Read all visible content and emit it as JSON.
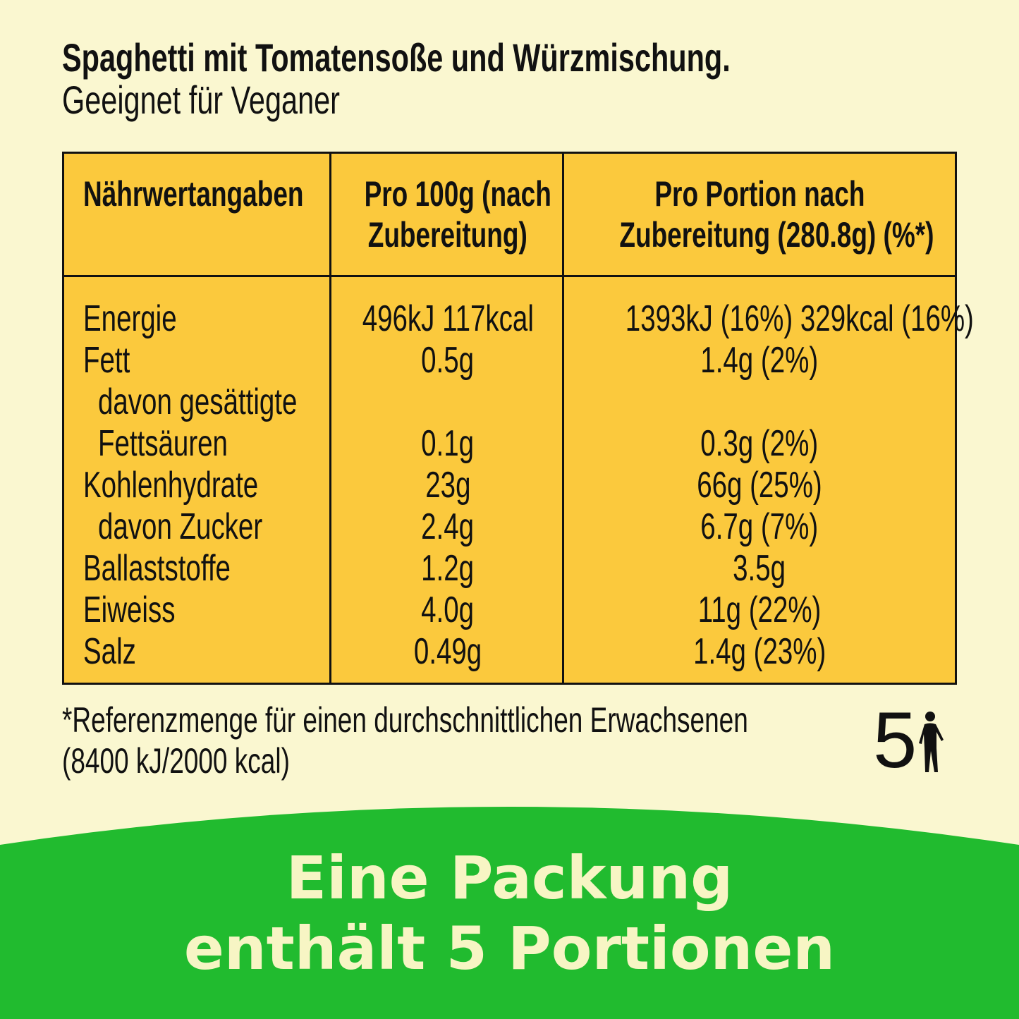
{
  "title": "Spaghetti mit Tomatensoße und Würzmischung.",
  "subtitle": "Geeignet für Veganer",
  "table": {
    "headers": [
      [
        "Nährwertangaben"
      ],
      [
        "Pro 100g (nach",
        "Zubereitung)"
      ],
      [
        "Pro Portion nach",
        "Zubereitung (280.8g) (%*)"
      ]
    ],
    "rows": [
      {
        "label": "Energie",
        "per100": "496kJ 117kcal",
        "portion": "1393kJ (16%) 329kcal (16%)",
        "indent": false
      },
      {
        "label": "Fett",
        "per100": "0.5g",
        "portion": "1.4g (2%)",
        "indent": false
      },
      {
        "label": "davon gesättigte",
        "per100": "",
        "portion": "",
        "indent": true
      },
      {
        "label": "Fettsäuren",
        "per100": "0.1g",
        "portion": "0.3g (2%)",
        "indent": true
      },
      {
        "label": "Kohlenhydrate",
        "per100": "23g",
        "portion": "66g (25%)",
        "indent": false
      },
      {
        "label": "davon Zucker",
        "per100": "2.4g",
        "portion": "6.7g (7%)",
        "indent": true
      },
      {
        "label": "Ballaststoffe",
        "per100": "1.2g",
        "portion": "3.5g",
        "indent": false
      },
      {
        "label": "Eiweiss",
        "per100": "4.0g",
        "portion": "11g (22%)",
        "indent": false
      },
      {
        "label": "Salz",
        "per100": "0.49g",
        "portion": "1.4g (23%)",
        "indent": false
      }
    ]
  },
  "footnote": [
    "*Referenzmenge für einen durchschnittlichen Erwachsenen",
    "(8400 kJ/2000 kcal)"
  ],
  "portions_icon": {
    "number": "5",
    "icon": "person-icon"
  },
  "banner": [
    "Eine Packung",
    "enthält 5 Portionen"
  ],
  "colors": {
    "background": "#faf7d0",
    "table": "#fbc93d",
    "banner": "#21bb2f",
    "banner_text": "#f7f5c4"
  }
}
